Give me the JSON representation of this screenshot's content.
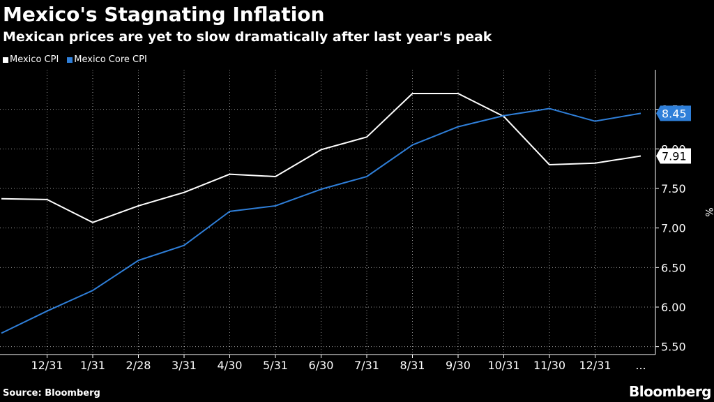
{
  "title": "Mexico's Stagnating Inflation",
  "subtitle": "Mexican prices are yet to slow dramatically after last year's peak",
  "source": "Source: Bloomberg",
  "brand": "Bloomberg",
  "colors": {
    "background": "#000000",
    "cpi": "#ffffff",
    "core_cpi": "#2f7fd9",
    "grid": "#ffffff",
    "label_text_dark": "#000000"
  },
  "chart_data": {
    "type": "line",
    "title": "Mexico's Stagnating Inflation",
    "xlabel": "",
    "ylabel": "%",
    "ylim": [
      5.4,
      9.0
    ],
    "yticks": [
      5.5,
      6.0,
      6.5,
      7.0,
      7.5,
      8.0,
      8.5
    ],
    "ytick_labels": [
      "5.50",
      "6.00",
      "6.50",
      "7.00",
      "7.50",
      "8.00",
      "8.50"
    ],
    "categories": [
      "",
      "12/31",
      "1/31",
      "2/28",
      "3/31",
      "4/30",
      "5/31",
      "6/30",
      "7/31",
      "8/31",
      "9/30",
      "10/31",
      "11/30",
      "12/31",
      "..."
    ],
    "grid": true,
    "legend": "top-left",
    "series": [
      {
        "name": "Mexico CPI",
        "color": "#ffffff",
        "values": [
          7.37,
          7.36,
          7.07,
          7.28,
          7.45,
          7.68,
          7.65,
          7.99,
          8.15,
          8.7,
          8.7,
          8.41,
          7.8,
          7.82,
          7.91
        ],
        "last_label": "7.91"
      },
      {
        "name": "Mexico Core CPI",
        "color": "#2f7fd9",
        "values": [
          5.67,
          5.95,
          6.21,
          6.59,
          6.78,
          7.21,
          7.28,
          7.49,
          7.65,
          8.05,
          8.28,
          8.42,
          8.51,
          8.35,
          8.45
        ],
        "last_label": "8.45"
      }
    ]
  }
}
